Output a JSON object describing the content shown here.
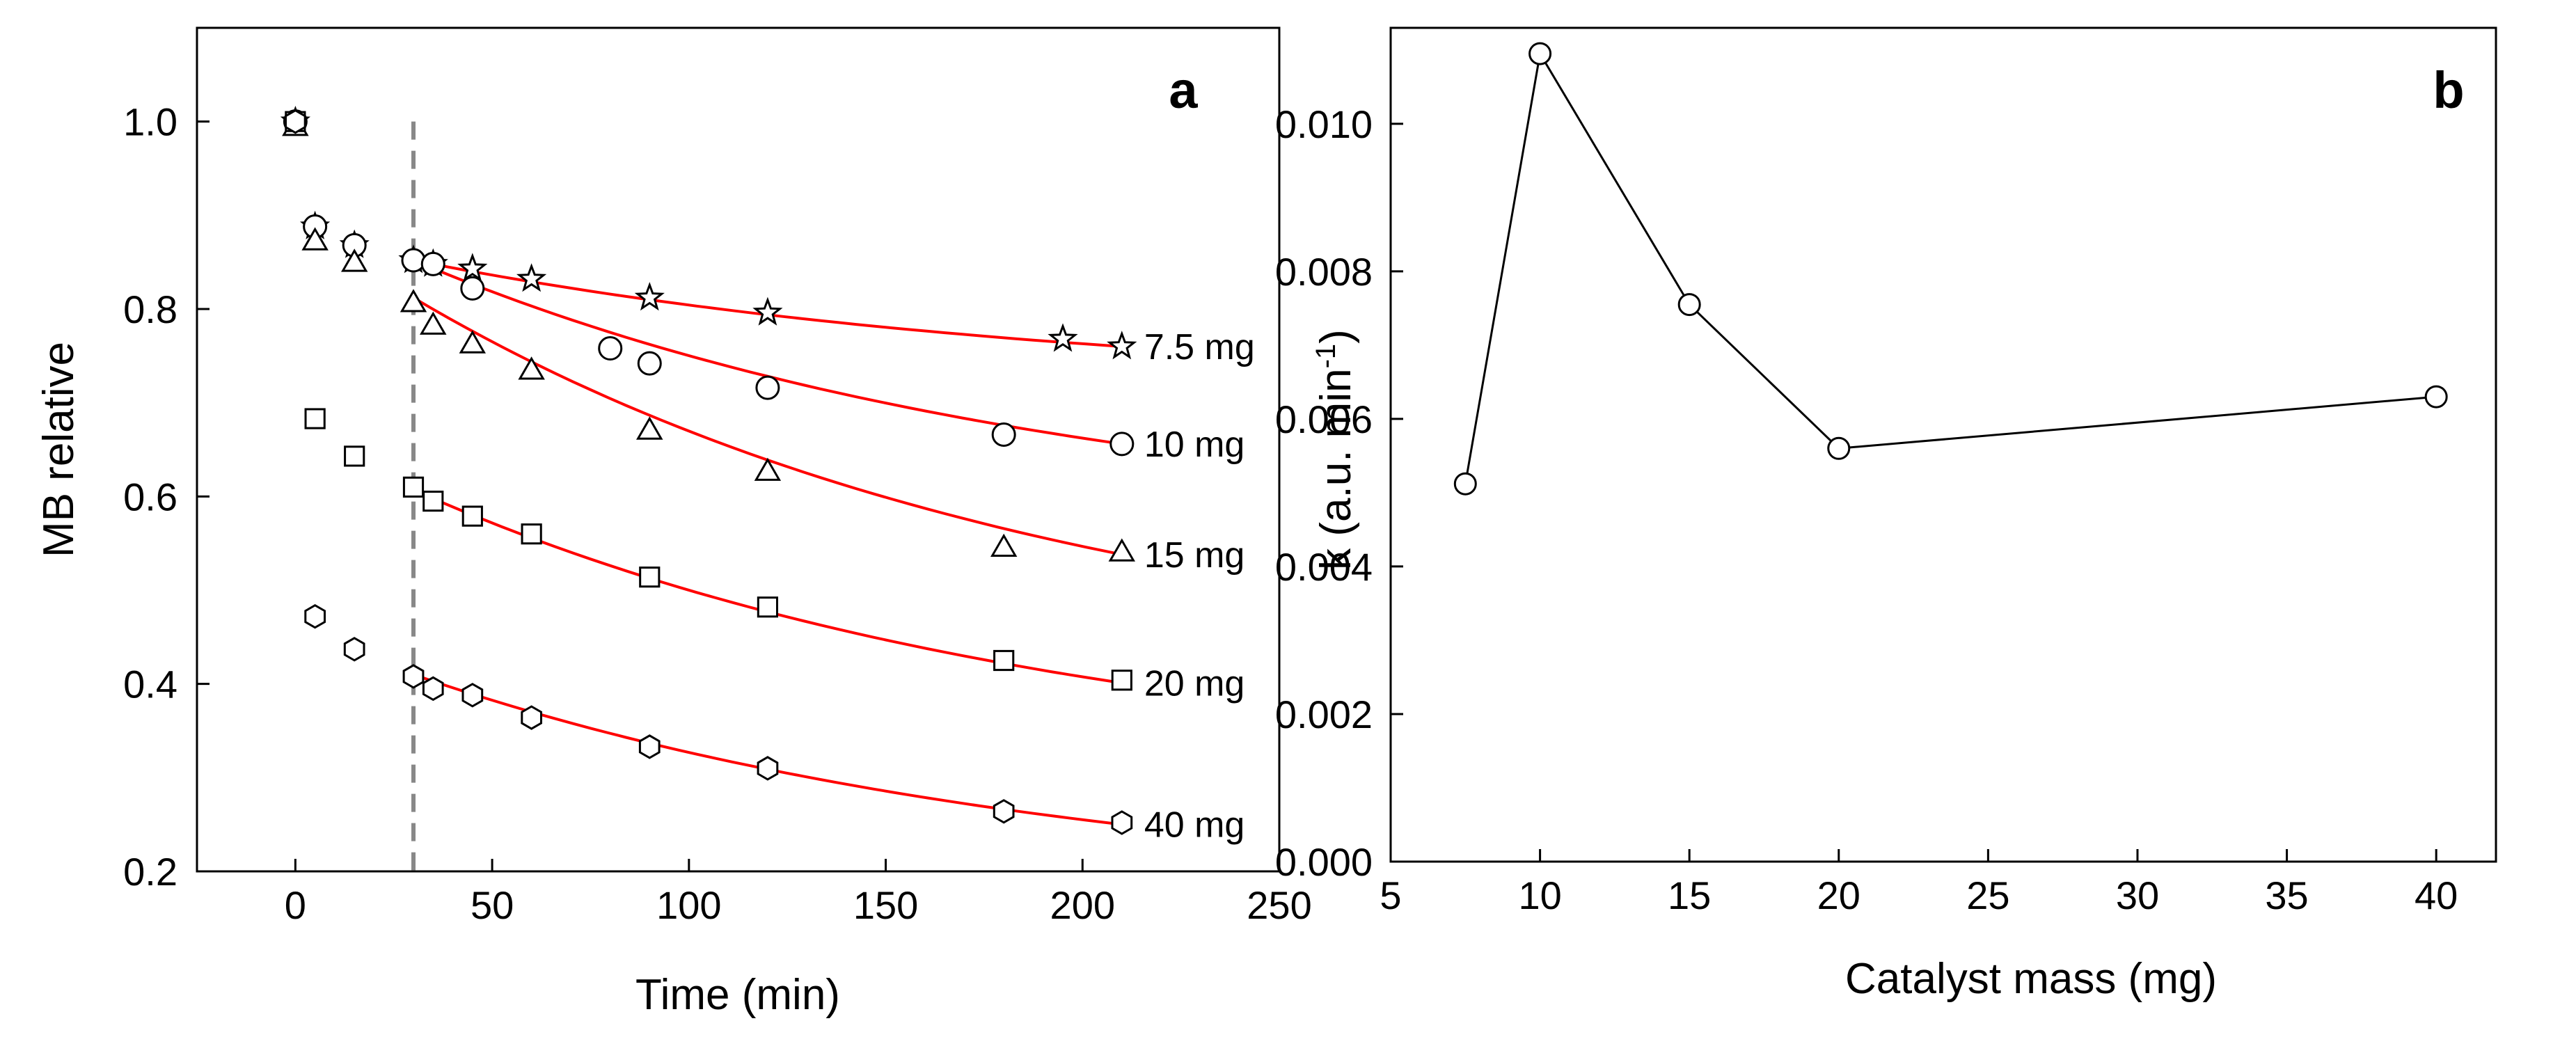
{
  "chart_data": [
    {
      "type": "scatter",
      "panel": "a",
      "xlabel": "Time (min)",
      "ylabel": "MB relative",
      "xlim": [
        -25,
        250
      ],
      "ylim": [
        0.2,
        1.1
      ],
      "xticks": [
        0,
        50,
        100,
        150,
        200,
        250
      ],
      "yticks": [
        0.2,
        0.4,
        0.6,
        0.8,
        1.0
      ],
      "xtick_labels": [
        "0",
        "50",
        "100",
        "150",
        "200",
        "250"
      ],
      "ytick_labels": [
        "0.2",
        "0.4",
        "0.6",
        "0.8",
        "1.0"
      ],
      "dark_light_boundary_x": 30,
      "fit_line_color": "#ff0000",
      "series": [
        {
          "name": "7.5 mg",
          "marker": "star",
          "x": [
            0,
            5,
            15,
            30,
            35,
            45,
            60,
            90,
            120,
            195,
            210
          ],
          "y": [
            1.0,
            0.888,
            0.868,
            0.852,
            0.848,
            0.843,
            0.832,
            0.812,
            0.796,
            0.768,
            0.76
          ],
          "fit_x": [
            30,
            210
          ],
          "fit_y": [
            0.852,
            0.76
          ]
        },
        {
          "name": "10 mg",
          "marker": "circle",
          "x": [
            0,
            5,
            15,
            30,
            35,
            45,
            80,
            90,
            120,
            180,
            210
          ],
          "y": [
            1.0,
            0.888,
            0.868,
            0.852,
            0.848,
            0.822,
            0.758,
            0.742,
            0.716,
            0.666,
            0.656
          ],
          "fit_x": [
            30,
            210
          ],
          "fit_y": [
            0.852,
            0.656
          ]
        },
        {
          "name": "15 mg",
          "marker": "triangle",
          "x": [
            0,
            5,
            15,
            30,
            35,
            45,
            60,
            90,
            120,
            180,
            210
          ],
          "y": [
            1.0,
            0.878,
            0.855,
            0.812,
            0.788,
            0.768,
            0.74,
            0.676,
            0.632,
            0.551,
            0.546
          ],
          "fit_x": [
            30,
            210
          ],
          "fit_y": [
            0.812,
            0.538
          ]
        },
        {
          "name": "20 mg",
          "marker": "square",
          "x": [
            0,
            5,
            15,
            30,
            35,
            45,
            60,
            90,
            120,
            180,
            210
          ],
          "y": [
            1.0,
            0.683,
            0.643,
            0.61,
            0.595,
            0.579,
            0.56,
            0.514,
            0.482,
            0.425,
            0.404
          ],
          "fit_x": [
            30,
            210
          ],
          "fit_y": [
            0.607,
            0.401
          ]
        },
        {
          "name": "40 mg",
          "marker": "hexagon",
          "x": [
            0,
            5,
            15,
            30,
            35,
            45,
            60,
            90,
            120,
            180,
            210
          ],
          "y": [
            1.0,
            0.472,
            0.437,
            0.408,
            0.395,
            0.388,
            0.364,
            0.333,
            0.31,
            0.264,
            0.252
          ],
          "fit_x": [
            30,
            210
          ],
          "fit_y": [
            0.41,
            0.25
          ]
        }
      ]
    },
    {
      "type": "line",
      "panel": "b",
      "xlabel": "Catalyst mass (mg)",
      "ylabel": "k (a.u. min",
      "ylabel_superscript": "-1",
      "ylabel_suffix": ")",
      "xlim": [
        5,
        42
      ],
      "ylim": [
        0,
        0.0113
      ],
      "xticks": [
        5,
        10,
        15,
        20,
        25,
        30,
        35,
        40
      ],
      "yticks": [
        0,
        0.002,
        0.004,
        0.006,
        0.008,
        0.01
      ],
      "xtick_labels": [
        "5",
        "10",
        "15",
        "20",
        "25",
        "30",
        "35",
        "40"
      ],
      "ytick_labels": [
        "0.000",
        "0.002",
        "0.004",
        "0.006",
        "0.008",
        "0.010"
      ],
      "line_color": "#000000",
      "x": [
        7.5,
        10,
        15,
        20,
        40
      ],
      "y": [
        0.00512,
        0.01095,
        0.00755,
        0.0056,
        0.0063
      ]
    }
  ]
}
